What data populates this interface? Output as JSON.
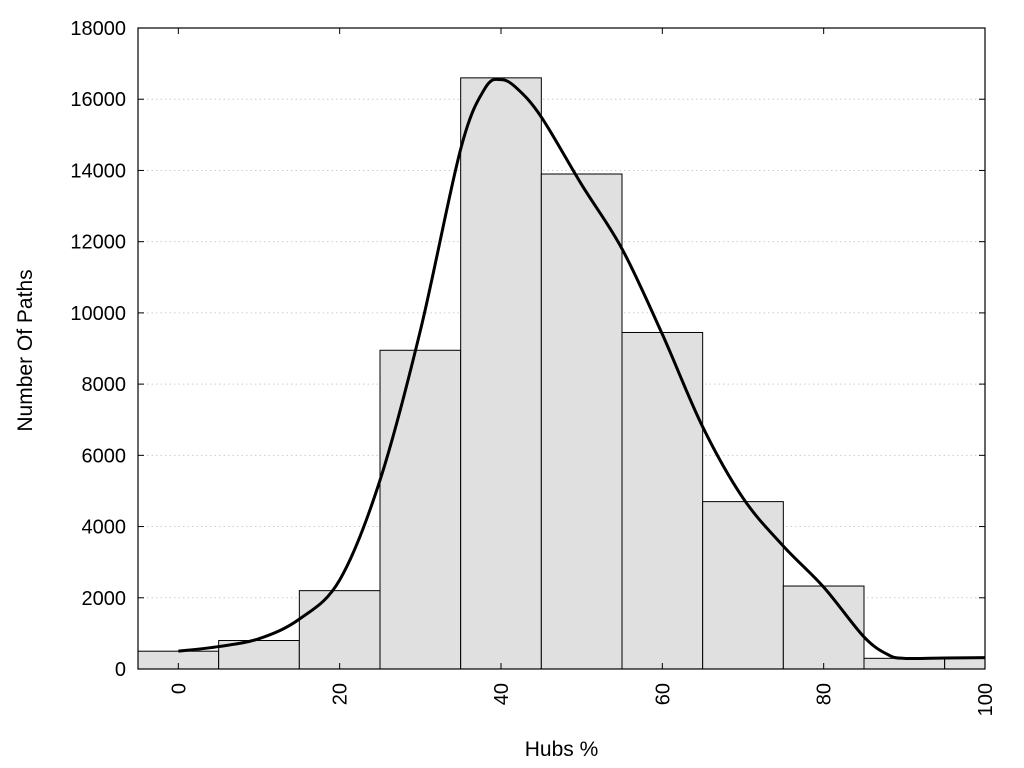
{
  "chart_data": {
    "type": "bar",
    "subtype": "histogram-with-density-curve",
    "title": "",
    "xlabel": "Hubs %",
    "ylabel": "Number Of Paths",
    "xlim": [
      -5,
      100
    ],
    "ylim": [
      0,
      18000
    ],
    "xticks": [
      0,
      20,
      40,
      60,
      80,
      100
    ],
    "xtick_labels": [
      "0",
      "20",
      "40",
      "60",
      "80",
      "100"
    ],
    "yticks": [
      0,
      2000,
      4000,
      6000,
      8000,
      10000,
      12000,
      14000,
      16000,
      18000
    ],
    "ytick_labels": [
      "0",
      "2000",
      "4000",
      "6000",
      "8000",
      "10000",
      "12000",
      "14000",
      "16000",
      "18000"
    ],
    "x_tick_label_rotation": "vertical",
    "grid": "horizontal dotted",
    "legend": "none",
    "bars": [
      {
        "x0": -5,
        "x1": 5,
        "value": 500
      },
      {
        "x0": 5,
        "x1": 15,
        "value": 800
      },
      {
        "x0": 15,
        "x1": 25,
        "value": 2200
      },
      {
        "x0": 25,
        "x1": 35,
        "value": 8950
      },
      {
        "x0": 35,
        "x1": 45,
        "value": 16600
      },
      {
        "x0": 45,
        "x1": 55,
        "value": 13900
      },
      {
        "x0": 55,
        "x1": 65,
        "value": 9450
      },
      {
        "x0": 65,
        "x1": 75,
        "value": 4700
      },
      {
        "x0": 75,
        "x1": 85,
        "value": 2330
      },
      {
        "x0": 85,
        "x1": 95,
        "value": 300
      },
      {
        "x0": 95,
        "x1": 100,
        "value": 300
      }
    ],
    "curve": {
      "x": [
        0,
        5,
        10,
        15,
        20,
        25,
        30,
        35,
        38,
        40,
        42,
        45,
        50,
        55,
        60,
        65,
        70,
        75,
        80,
        85,
        88,
        90,
        95,
        100
      ],
      "y": [
        500,
        630,
        850,
        1400,
        2500,
        5300,
        9500,
        14600,
        16300,
        16550,
        16300,
        15500,
        13600,
        11800,
        9400,
        6800,
        4800,
        3450,
        2300,
        900,
        400,
        300,
        310,
        320
      ]
    },
    "colors": {
      "bar_fill": "#e0e0e0",
      "bar_stroke": "#000000",
      "curve": "#000000",
      "grid": "#cccccc"
    }
  }
}
